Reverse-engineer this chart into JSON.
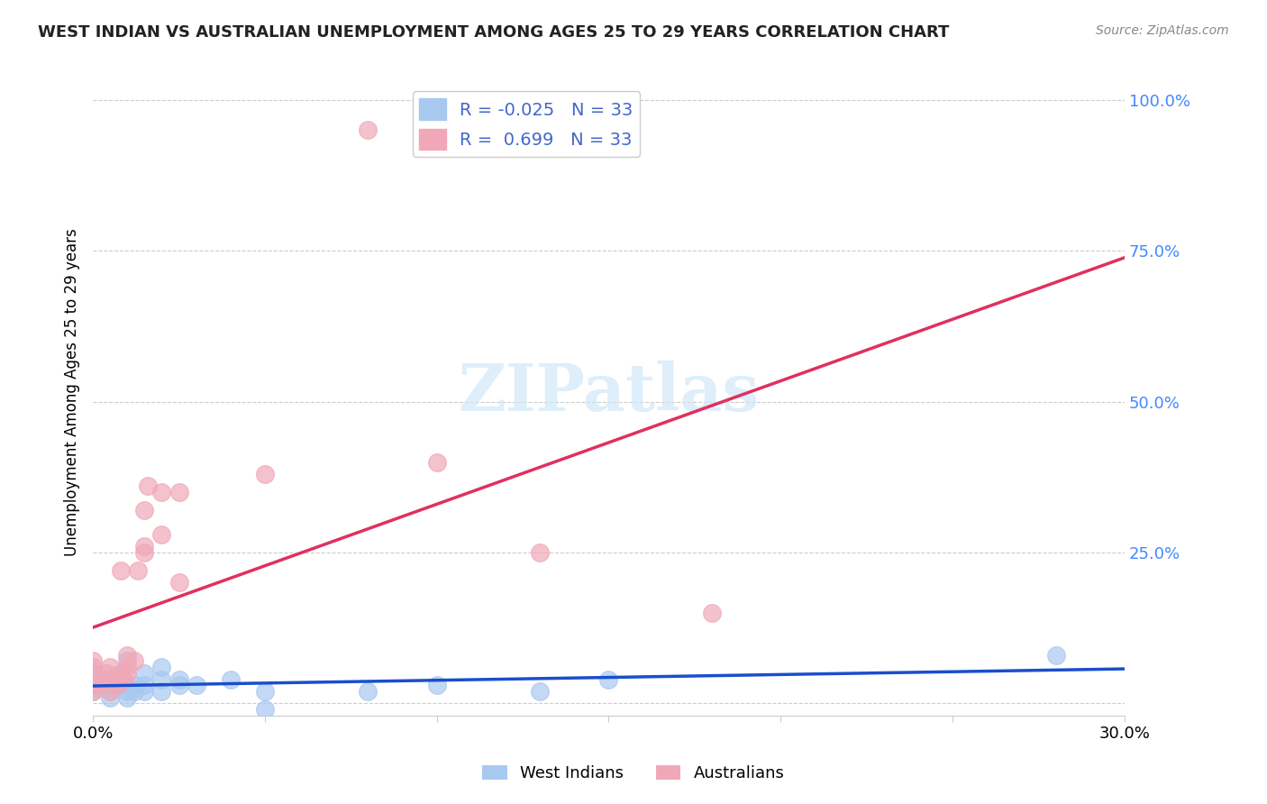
{
  "title": "WEST INDIAN VS AUSTRALIAN UNEMPLOYMENT AMONG AGES 25 TO 29 YEARS CORRELATION CHART",
  "source": "Source: ZipAtlas.com",
  "xlabel": "",
  "ylabel": "Unemployment Among Ages 25 to 29 years",
  "xlim": [
    0.0,
    0.3
  ],
  "ylim": [
    0.0,
    1.05
  ],
  "xticks": [
    0.0,
    0.05,
    0.1,
    0.15,
    0.2,
    0.25,
    0.3
  ],
  "xtick_labels": [
    "0.0%",
    "",
    "",
    "",
    "",
    "",
    "30.0%"
  ],
  "yticks": [
    0.0,
    0.25,
    0.5,
    0.75,
    1.0
  ],
  "ytick_labels_right": [
    "",
    "25.0%",
    "50.0%",
    "75.0%",
    "100.0%"
  ],
  "west_indian_color": "#a8c8f0",
  "australian_color": "#f0a8b8",
  "west_indian_R": -0.025,
  "west_indian_N": 33,
  "australian_R": 0.699,
  "australian_N": 33,
  "west_indian_line_color": "#1a4ecc",
  "australian_line_color": "#e03060",
  "grid_color": "#cccccc",
  "watermark": "ZIPatlas",
  "west_indian_x": [
    0.0,
    0.0,
    0.0,
    0.0,
    0.005,
    0.005,
    0.005,
    0.005,
    0.008,
    0.008,
    0.01,
    0.01,
    0.01,
    0.01,
    0.012,
    0.012,
    0.015,
    0.015,
    0.015,
    0.02,
    0.02,
    0.02,
    0.025,
    0.025,
    0.03,
    0.04,
    0.05,
    0.05,
    0.08,
    0.1,
    0.13,
    0.15,
    0.28
  ],
  "west_indian_y": [
    0.02,
    0.03,
    0.04,
    0.05,
    0.01,
    0.02,
    0.03,
    0.04,
    0.03,
    0.05,
    0.01,
    0.02,
    0.03,
    0.07,
    0.02,
    0.03,
    0.02,
    0.03,
    0.05,
    0.02,
    0.04,
    0.06,
    0.03,
    0.04,
    0.03,
    0.04,
    0.02,
    -0.01,
    0.02,
    0.03,
    0.02,
    0.04,
    0.08
  ],
  "australian_x": [
    0.0,
    0.0,
    0.0,
    0.0,
    0.0,
    0.002,
    0.003,
    0.004,
    0.005,
    0.005,
    0.006,
    0.007,
    0.008,
    0.008,
    0.009,
    0.01,
    0.01,
    0.01,
    0.012,
    0.013,
    0.015,
    0.015,
    0.015,
    0.016,
    0.02,
    0.02,
    0.025,
    0.025,
    0.05,
    0.08,
    0.1,
    0.13,
    0.18
  ],
  "australian_y": [
    0.02,
    0.03,
    0.05,
    0.06,
    0.07,
    0.03,
    0.04,
    0.05,
    0.02,
    0.06,
    0.04,
    0.03,
    0.05,
    0.22,
    0.04,
    0.06,
    0.05,
    0.08,
    0.07,
    0.22,
    0.25,
    0.26,
    0.32,
    0.36,
    0.28,
    0.35,
    0.2,
    0.35,
    0.38,
    0.95,
    0.4,
    0.25,
    0.15
  ]
}
